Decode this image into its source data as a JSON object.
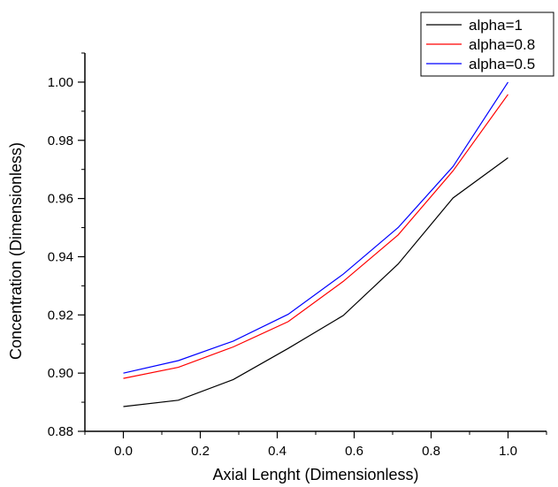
{
  "chart_data": {
    "type": "line",
    "title": "",
    "xlabel": "Axial Lenght (Dimensionless)",
    "ylabel": "Concentration (Dimensionless)",
    "xlim": [
      -0.1,
      1.1
    ],
    "ylim": [
      0.88,
      1.01
    ],
    "x_ticks": [
      "0.0",
      "0.2",
      "0.4",
      "0.6",
      "0.8",
      "1.0"
    ],
    "y_ticks": [
      "0.88",
      "0.90",
      "0.92",
      "0.94",
      "0.96",
      "0.98",
      "1.00"
    ],
    "grid": false,
    "legend_position": "top-right",
    "x": [
      0,
      0.1429,
      0.2857,
      0.4286,
      0.5714,
      0.7143,
      0.8571,
      1.0
    ],
    "series": [
      {
        "name": "alpha=1",
        "color": "#000000",
        "values": [
          0.8885,
          0.8907,
          0.8978,
          0.9085,
          0.9198,
          0.9375,
          0.9602,
          0.974
        ]
      },
      {
        "name": "alpha=0.8",
        "color": "#ff0000",
        "values": [
          0.8982,
          0.902,
          0.909,
          0.9177,
          0.9315,
          0.9475,
          0.9695,
          0.9958
        ]
      },
      {
        "name": "alpha=0.5",
        "color": "#0000ff",
        "values": [
          0.9,
          0.9043,
          0.911,
          0.9202,
          0.934,
          0.95,
          0.971,
          1.0
        ]
      }
    ]
  }
}
